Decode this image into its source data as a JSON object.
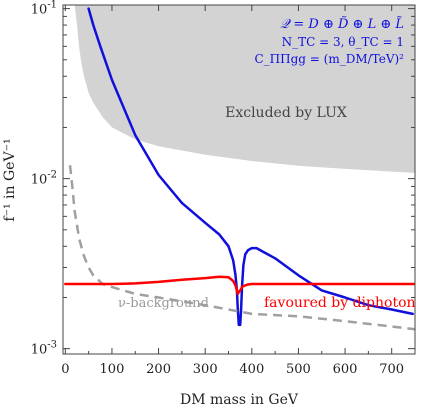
{
  "chart_data": {
    "type": "line",
    "title": "",
    "xlabel": "DM mass in GeV",
    "ylabel": "f⁻¹ in GeV⁻¹",
    "yscale": "log",
    "xlim": [
      -5,
      750
    ],
    "ylim": [
      0.00093,
      0.105
    ],
    "x_ticks": [
      {
        "value": 0,
        "label": "0"
      },
      {
        "value": 100,
        "label": "100"
      },
      {
        "value": 200,
        "label": "200"
      },
      {
        "value": 300,
        "label": "300"
      },
      {
        "value": 400,
        "label": "400"
      },
      {
        "value": 500,
        "label": "500"
      },
      {
        "value": 600,
        "label": "600"
      },
      {
        "value": 700,
        "label": "700"
      }
    ],
    "y_ticks": [
      {
        "value": 0.001,
        "base": "10",
        "exp": "-3"
      },
      {
        "value": 0.01,
        "base": "10",
        "exp": "-2"
      },
      {
        "value": 0.1,
        "base": "10",
        "exp": "-1"
      }
    ],
    "grid": false,
    "legend_text": {
      "line1": "𝒬 = D ⊕ D̃ ⊕ L ⊕ L̃",
      "line2": "N_TC = 3, θ_TC = 1",
      "line3": "C_ΠΠgg = (m_DM/TeV)²",
      "color": "#1010dd"
    },
    "region": {
      "name": "Excluded by LUX",
      "color": "#d3d3d3",
      "boundary": {
        "x": [
          20,
          25,
          30,
          35,
          40,
          50,
          60,
          80,
          100,
          150,
          200,
          300,
          400,
          500,
          600,
          700,
          750
        ],
        "y": [
          0.105,
          0.08,
          0.058,
          0.047,
          0.04,
          0.032,
          0.028,
          0.023,
          0.02,
          0.017,
          0.0155,
          0.0138,
          0.0127,
          0.0119,
          0.0114,
          0.011,
          0.0108
        ]
      }
    },
    "series": [
      {
        "name": "",
        "color": "#1010dd",
        "style": "solid",
        "x": [
          50,
          60,
          75,
          100,
          150,
          200,
          250,
          300,
          330,
          350,
          360,
          365,
          368,
          370,
          372,
          375,
          377,
          379,
          382,
          386,
          392,
          400,
          410,
          425,
          450,
          500,
          550,
          600,
          650,
          700,
          745
        ],
        "y": [
          0.1,
          0.08,
          0.06,
          0.038,
          0.018,
          0.0105,
          0.0072,
          0.0055,
          0.0047,
          0.004,
          0.0033,
          0.0027,
          0.0022,
          0.0017,
          0.00138,
          0.00138,
          0.0017,
          0.0023,
          0.0031,
          0.0036,
          0.0038,
          0.0039,
          0.0039,
          0.0037,
          0.0034,
          0.0027,
          0.0022,
          0.002,
          0.0018,
          0.0017,
          0.0016
        ]
      },
      {
        "name": "ν-background",
        "color": "#a0a0a0",
        "style": "dashed",
        "x": [
          10,
          15,
          20,
          30,
          40,
          50,
          60,
          80,
          100,
          150,
          200,
          300,
          350,
          400,
          500,
          600,
          700,
          750
        ],
        "y": [
          0.012,
          0.009,
          0.0064,
          0.0044,
          0.0035,
          0.003,
          0.0027,
          0.0024,
          0.0023,
          0.0021,
          0.002,
          0.0018,
          0.0017,
          0.0016,
          0.00155,
          0.00145,
          0.00135,
          0.0013
        ]
      },
      {
        "name": "favoured by diphoton",
        "color": "#ff0000",
        "style": "solid",
        "x": [
          0,
          100,
          150,
          200,
          250,
          300,
          330,
          350,
          360,
          365,
          368,
          370,
          372,
          375,
          380,
          390,
          400,
          450,
          500,
          600,
          700,
          750
        ],
        "y": [
          0.0024,
          0.0024,
          0.00242,
          0.00247,
          0.00254,
          0.0026,
          0.00265,
          0.00263,
          0.0025,
          0.00235,
          0.0022,
          0.0021,
          0.00215,
          0.0022,
          0.00232,
          0.00238,
          0.0024,
          0.0024,
          0.0024,
          0.0024,
          0.0024,
          0.0024
        ]
      }
    ],
    "annotations": {
      "lux": "Excluded by LUX",
      "nu": "ν-background",
      "diphoton": "favoured by diphoton"
    }
  }
}
